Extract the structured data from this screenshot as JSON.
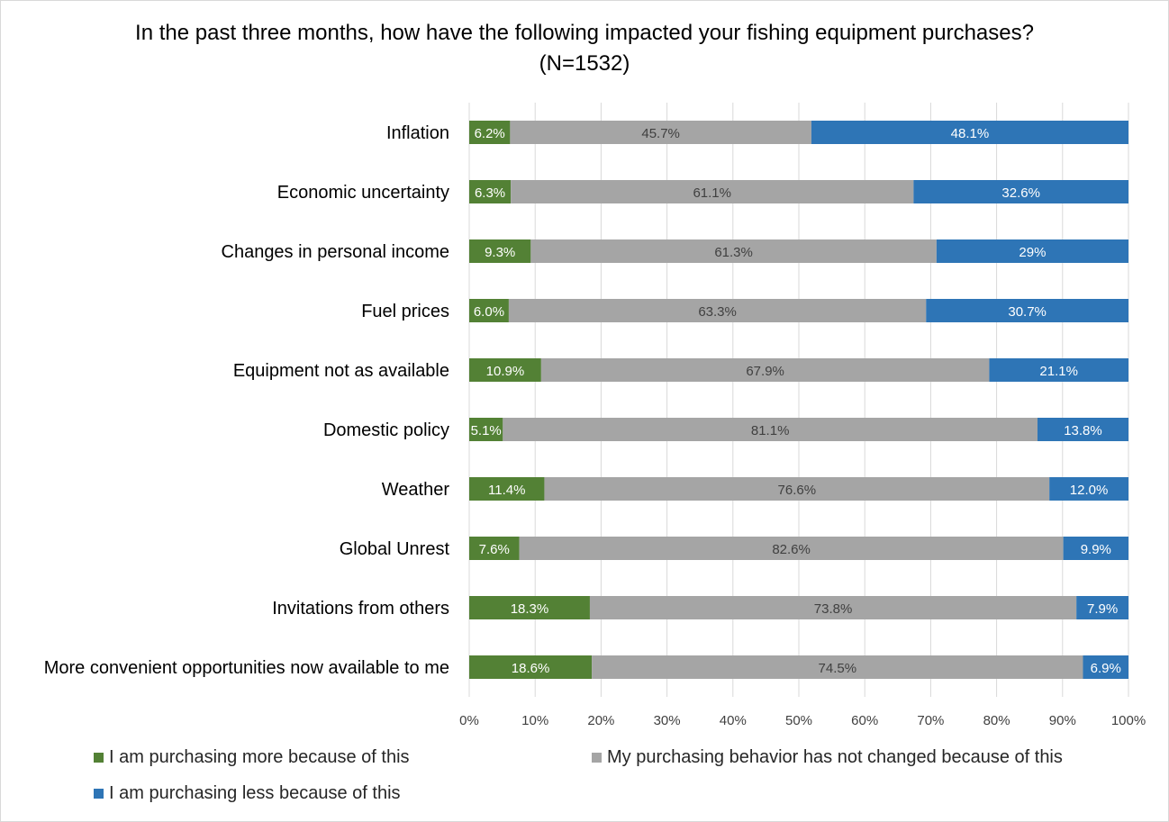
{
  "chart_data": {
    "type": "bar",
    "orientation": "horizontal",
    "stacked": "percent",
    "title": "In the past three months, how have the following impacted your fishing equipment purchases? (N=1532)",
    "xlabel": "",
    "ylabel": "",
    "xlim": [
      0,
      100
    ],
    "x_ticks": [
      "0%",
      "10%",
      "20%",
      "30%",
      "40%",
      "50%",
      "60%",
      "70%",
      "80%",
      "90%",
      "100%"
    ],
    "grid": true,
    "legend_position": "bottom",
    "categories": [
      "Inflation",
      "Economic uncertainty",
      "Changes in personal income",
      "Fuel prices",
      "Equipment not as available",
      "Domestic policy",
      "Weather",
      "Global Unrest",
      "Invitations from others",
      "More convenient opportunities now available to me"
    ],
    "series": [
      {
        "name": "I am purchasing more because of this",
        "color": "#538135",
        "values": [
          6.2,
          6.3,
          9.3,
          6.0,
          10.9,
          5.1,
          11.4,
          7.6,
          18.3,
          18.6
        ],
        "labels": [
          "6.2%",
          "6.3%",
          "9.3%",
          "6.0%",
          "10.9%",
          "5.1%",
          "11.4%",
          "7.6%",
          "18.3%",
          "18.6%"
        ]
      },
      {
        "name": "My purchasing behavior has not changed because of this",
        "color": "#a5a5a5",
        "values": [
          45.7,
          61.1,
          61.3,
          63.3,
          67.9,
          81.1,
          76.6,
          82.6,
          73.8,
          74.5
        ],
        "labels": [
          "45.7%",
          "61.1%",
          "61.3%",
          "63.3%",
          "67.9%",
          "81.1%",
          "76.6%",
          "82.6%",
          "73.8%",
          "74.5%"
        ]
      },
      {
        "name": "I am purchasing less because of this",
        "color": "#2e75b6",
        "values": [
          48.1,
          32.6,
          29,
          30.7,
          21.1,
          13.8,
          12.0,
          9.9,
          7.9,
          6.9
        ],
        "labels": [
          "48.1%",
          "32.6%",
          "29%",
          "30.7%",
          "21.1%",
          "13.8%",
          "12.0%",
          "9.9%",
          "7.9%",
          "6.9%"
        ]
      }
    ]
  }
}
